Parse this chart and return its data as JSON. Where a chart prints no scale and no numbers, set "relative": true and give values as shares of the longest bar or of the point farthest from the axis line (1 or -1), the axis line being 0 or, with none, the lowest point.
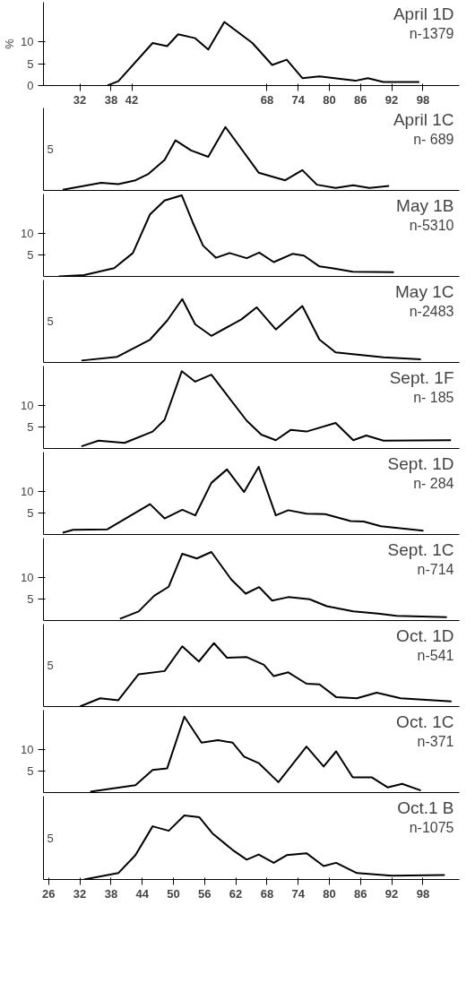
{
  "chart_data": [
    {
      "type": "line",
      "title": "April 1D",
      "ylabel": "%",
      "annotations": [
        "n-1379"
      ],
      "xlim": [
        25,
        105
      ],
      "ylim": [
        0,
        19
      ],
      "yticks": [
        0,
        5,
        10
      ],
      "xticks": [
        32,
        38,
        42,
        68,
        74,
        80,
        86,
        92,
        98
      ],
      "grid": false,
      "series": [
        {
          "color": "#000000",
          "x": [
            37.3,
            39.4,
            46.0,
            48.8,
            50.9,
            54.2,
            56.7,
            59.8,
            65.2,
            69.0,
            71.8,
            74.8,
            78.1,
            85.0,
            87.4,
            90.4,
            97.3
          ],
          "values": [
            0,
            1.0,
            9.7,
            9.0,
            11.7,
            10.8,
            8.2,
            14.5,
            9.7,
            4.7,
            5.9,
            1.7,
            2.1,
            1.1,
            1.7,
            0.8,
            0.8
          ]
        }
      ]
    },
    {
      "type": "line",
      "title": "April 1C",
      "annotations": [
        "n- 689",
        "5"
      ],
      "relative": true,
      "xlim": [
        25,
        105
      ],
      "tick_labels": false,
      "grid": false,
      "series": [
        {
          "color": "#000000",
          "x": [
            28.7,
            36.1,
            39.4,
            42.7,
            45.2,
            48.3,
            50.4,
            53.4,
            56.7,
            60.0,
            66.4,
            71.5,
            74.8,
            77.6,
            81.2,
            84.6,
            87.7,
            91.5
          ],
          "values": [
            0.01,
            0.12,
            0.1,
            0.16,
            0.26,
            0.48,
            0.79,
            0.63,
            0.53,
            1,
            0.28,
            0.16,
            0.32,
            0.09,
            0.04,
            0.08,
            0.04,
            0.07
          ]
        }
      ]
    },
    {
      "type": "line",
      "title": "May 1B",
      "annotations": [
        "n-5310"
      ],
      "xlim": [
        25,
        105
      ],
      "ylim": [
        0,
        19
      ],
      "yticks": [
        5,
        10
      ],
      "tick_labels": "y",
      "grid": false,
      "series": [
        {
          "color": "#000000",
          "x": [
            27.9,
            32.8,
            38.6,
            42.2,
            45.5,
            48.3,
            51.6,
            53.7,
            55.7,
            58.2,
            60.8,
            64.1,
            66.5,
            69.3,
            72.9,
            75.1,
            78.1,
            80.5,
            84.5,
            92.4
          ],
          "values": [
            0,
            0.3,
            1.9,
            5.4,
            14.3,
            17.5,
            18.7,
            12.5,
            7.1,
            4.3,
            5.4,
            4.2,
            5.5,
            3.3,
            5.2,
            4.8,
            2.3,
            1.9,
            1.1,
            1.0
          ]
        }
      ]
    },
    {
      "type": "line",
      "title": "May 1C",
      "annotations": [
        "n-2483",
        "5"
      ],
      "relative": true,
      "xlim": [
        25,
        105
      ],
      "tick_labels": false,
      "grid": false,
      "series": [
        {
          "color": "#000000",
          "x": [
            32.3,
            39.2,
            45.5,
            48.8,
            51.7,
            54.2,
            57.3,
            63.1,
            66.0,
            69.7,
            74.8,
            78.1,
            81.2,
            90.4,
            97.6
          ],
          "values": [
            0.03,
            0.09,
            0.36,
            0.66,
            1,
            0.6,
            0.42,
            0.68,
            0.87,
            0.52,
            0.89,
            0.36,
            0.16,
            0.08,
            0.05
          ]
        }
      ]
    },
    {
      "type": "line",
      "title": "Sept. 1F",
      "annotations": [
        "n- 185"
      ],
      "xlim": [
        25,
        105
      ],
      "ylim": [
        0,
        19
      ],
      "yticks": [
        5,
        10
      ],
      "tick_labels": "y",
      "grid": false,
      "series": [
        {
          "color": "#000000",
          "x": [
            32.3,
            35.6,
            40.6,
            46.0,
            48.3,
            51.6,
            54.2,
            57.3,
            64.1,
            66.9,
            69.7,
            72.6,
            75.6,
            81.2,
            84.6,
            87.1,
            90.4,
            103.4
          ],
          "values": [
            0.5,
            1.8,
            1.3,
            3.9,
            6.6,
            17.8,
            15.4,
            17.0,
            6.4,
            3.2,
            1.9,
            4.3,
            3.9,
            5.9,
            1.9,
            3.0,
            1.8,
            1.9
          ]
        }
      ]
    },
    {
      "type": "line",
      "title": "Sept. 1D",
      "annotations": [
        "n- 284"
      ],
      "xlim": [
        25,
        105
      ],
      "ylim": [
        0,
        19
      ],
      "yticks": [
        5,
        10
      ],
      "tick_labels": "y",
      "grid": false,
      "series": [
        {
          "color": "#000000",
          "x": [
            28.7,
            30.7,
            37.3,
            45.5,
            48.3,
            51.7,
            54.2,
            57.3,
            60.3,
            63.6,
            66.4,
            69.7,
            72.1,
            75.6,
            79.2,
            84.1,
            86.6,
            89.9,
            98.1
          ],
          "values": [
            0.4,
            1.1,
            1.2,
            7.0,
            3.7,
            5.7,
            4.4,
            11.9,
            15.0,
            9.8,
            15.6,
            4.4,
            5.6,
            4.8,
            4.7,
            3.1,
            3.0,
            1.9,
            0.9
          ]
        }
      ]
    },
    {
      "type": "line",
      "title": "Sept. 1C",
      "annotations": [
        "n-714"
      ],
      "xlim": [
        25,
        105
      ],
      "ylim": [
        0,
        19
      ],
      "yticks": [
        5,
        10
      ],
      "tick_labels": "y",
      "grid": false,
      "series": [
        {
          "color": "#000000",
          "x": [
            39.7,
            43.3,
            46.3,
            49.1,
            51.7,
            54.5,
            57.3,
            61.1,
            63.9,
            66.5,
            69.0,
            72.1,
            76.2,
            79.5,
            84.6,
            89.4,
            92.9,
            102.6
          ],
          "values": [
            0.4,
            2.1,
            5.7,
            7.8,
            15.4,
            14.3,
            15.8,
            9.5,
            6.2,
            7.7,
            4.6,
            5.4,
            4.9,
            3.3,
            2.1,
            1.6,
            1.1,
            0.8
          ]
        }
      ]
    },
    {
      "type": "line",
      "title": "Oct. 1D",
      "annotations": [
        "n-541",
        "5"
      ],
      "relative": true,
      "xlim": [
        25,
        105
      ],
      "tick_labels": false,
      "grid": false,
      "series": [
        {
          "color": "#000000",
          "x": [
            32.0,
            35.9,
            39.4,
            43.3,
            48.3,
            51.7,
            54.9,
            57.8,
            60.3,
            64.1,
            67.4,
            69.3,
            72.1,
            75.6,
            78.1,
            81.3,
            85.3,
            89.1,
            93.7,
            103.5
          ],
          "values": [
            0,
            0.13,
            0.1,
            0.51,
            0.56,
            0.95,
            0.71,
            1,
            0.77,
            0.78,
            0.66,
            0.48,
            0.54,
            0.36,
            0.35,
            0.15,
            0.13,
            0.22,
            0.13,
            0.08
          ]
        }
      ]
    },
    {
      "type": "line",
      "title": "Oct. 1C",
      "annotations": [
        "n-371"
      ],
      "xlim": [
        25,
        105
      ],
      "ylim": [
        0,
        19
      ],
      "yticks": [
        5,
        10
      ],
      "tick_labels": "y",
      "grid": false,
      "series": [
        {
          "color": "#000000",
          "x": [
            34.0,
            42.7,
            46.0,
            48.8,
            52.1,
            55.4,
            58.6,
            61.4,
            63.6,
            66.4,
            70.2,
            75.6,
            78.9,
            81.3,
            84.5,
            88.2,
            91.2,
            94.0,
            97.6
          ],
          "values": [
            0.2,
            1.7,
            5.2,
            5.6,
            17.5,
            11.5,
            12.1,
            11.5,
            8.3,
            6.8,
            2.4,
            10.6,
            6.0,
            9.5,
            3.5,
            3.5,
            1.2,
            2.0,
            0.5
          ]
        }
      ]
    },
    {
      "type": "line",
      "title": "Oct.1 B",
      "annotations": [
        "n-1075",
        "5"
      ],
      "relative": true,
      "xlim": [
        25,
        105
      ],
      "xticks": [
        26,
        32,
        38,
        44,
        50,
        56,
        62,
        68,
        74,
        80,
        86,
        92,
        98
      ],
      "tick_labels": "x",
      "grid": false,
      "series": [
        {
          "color": "#000000",
          "x": [
            32.8,
            39.4,
            42.7,
            46.0,
            49.1,
            52.1,
            55.0,
            57.5,
            61.4,
            64.1,
            66.4,
            69.3,
            71.8,
            75.6,
            78.9,
            81.3,
            85.3,
            92.0,
            102.2
          ],
          "values": [
            0,
            0.1,
            0.38,
            0.83,
            0.76,
            1,
            0.97,
            0.72,
            0.46,
            0.31,
            0.39,
            0.26,
            0.38,
            0.41,
            0.21,
            0.26,
            0.1,
            0.06,
            0.07
          ]
        }
      ]
    }
  ]
}
